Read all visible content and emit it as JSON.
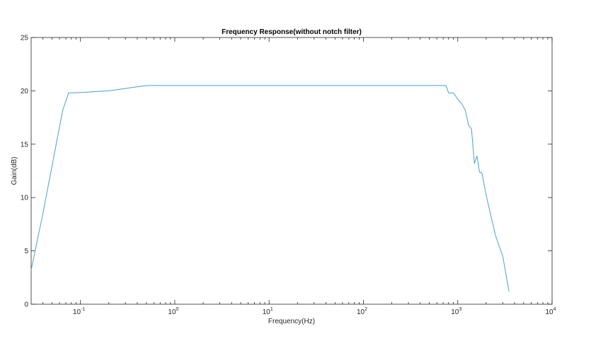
{
  "chart_data": {
    "type": "line",
    "title": "Frequency Response(without notch filter)",
    "xlabel": "Frequency(Hz)",
    "ylabel": "Gain(dB)",
    "xscale": "log",
    "xlim": [
      0.03,
      10000
    ],
    "ylim": [
      0,
      25
    ],
    "grid": false,
    "line_color": "#4a9fd0",
    "x_ticks": [
      {
        "value": 0.1,
        "base": "10",
        "exp": "-1"
      },
      {
        "value": 1,
        "base": "10",
        "exp": "0"
      },
      {
        "value": 10,
        "base": "10",
        "exp": "1"
      },
      {
        "value": 100,
        "base": "10",
        "exp": "2"
      },
      {
        "value": 1000,
        "base": "10",
        "exp": "3"
      },
      {
        "value": 10000,
        "base": "10",
        "exp": "4"
      }
    ],
    "y_ticks": [
      {
        "value": 0,
        "label": "0"
      },
      {
        "value": 5,
        "label": "5"
      },
      {
        "value": 10,
        "label": "10"
      },
      {
        "value": 15,
        "label": "15"
      },
      {
        "value": 20,
        "label": "20"
      },
      {
        "value": 25,
        "label": "25"
      }
    ],
    "series": [
      {
        "x": [
          0.03,
          0.04,
          0.05,
          0.065,
          0.075,
          0.1,
          0.2,
          0.5,
          1,
          10,
          100,
          700,
          750,
          800,
          900,
          950,
          1000,
          1050,
          1100,
          1200,
          1300,
          1400,
          1500,
          1600,
          1700,
          1800,
          2000,
          2500,
          3000,
          3500
        ],
        "y": [
          3.2,
          8.5,
          13.0,
          18.2,
          19.8,
          19.85,
          20.0,
          20.5,
          20.5,
          20.5,
          20.5,
          20.5,
          20.5,
          19.8,
          19.8,
          19.5,
          19.2,
          19.0,
          18.8,
          18.2,
          16.8,
          16.4,
          13.2,
          13.9,
          12.4,
          12.3,
          10.2,
          6.5,
          4.5,
          1.2
        ]
      }
    ]
  }
}
